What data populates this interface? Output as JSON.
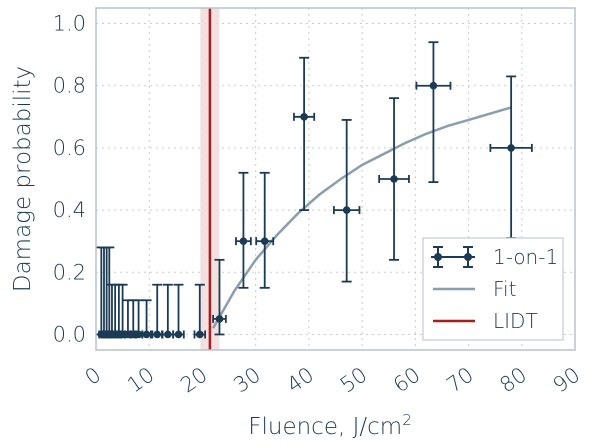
{
  "chart_data": {
    "type": "scatter",
    "title": "",
    "xlabel": "Fluence, J/cm",
    "xlabel_sup": "2",
    "ylabel": "Damage probability",
    "xlim": [
      0,
      90
    ],
    "ylim": [
      -0.05,
      1.05
    ],
    "x_ticks": [
      0,
      10,
      20,
      30,
      40,
      50,
      60,
      70,
      80,
      90
    ],
    "y_ticks": [
      0.0,
      0.2,
      0.4,
      0.6,
      0.8,
      1.0
    ],
    "y_tick_labels": [
      "0.0",
      "0.2",
      "0.4",
      "0.6",
      "0.8",
      "1.0"
    ],
    "grid": true,
    "legend_position": "bottom-right",
    "series": [
      {
        "name": "1-on-1",
        "color": "#1b3b55",
        "points": [
          {
            "x": 1.0,
            "y": 0.0,
            "xerr": 0.4,
            "yerr_low": 0.0,
            "yerr_high": 0.28
          },
          {
            "x": 1.5,
            "y": 0.0,
            "xerr": 0.4,
            "yerr_low": 0.0,
            "yerr_high": 0.28
          },
          {
            "x": 2.0,
            "y": 0.0,
            "xerr": 0.4,
            "yerr_low": 0.0,
            "yerr_high": 0.28
          },
          {
            "x": 2.5,
            "y": 0.0,
            "xerr": 0.4,
            "yerr_low": 0.0,
            "yerr_high": 0.28
          },
          {
            "x": 3.0,
            "y": 0.0,
            "xerr": 0.4,
            "yerr_low": 0.0,
            "yerr_high": 0.16
          },
          {
            "x": 3.6,
            "y": 0.0,
            "xerr": 0.5,
            "yerr_low": 0.0,
            "yerr_high": 0.16
          },
          {
            "x": 4.3,
            "y": 0.0,
            "xerr": 0.5,
            "yerr_low": 0.0,
            "yerr_high": 0.16
          },
          {
            "x": 5.0,
            "y": 0.0,
            "xerr": 0.5,
            "yerr_low": 0.0,
            "yerr_high": 0.16
          },
          {
            "x": 6.0,
            "y": 0.0,
            "xerr": 0.6,
            "yerr_low": 0.0,
            "yerr_high": 0.11
          },
          {
            "x": 7.0,
            "y": 0.0,
            "xerr": 0.6,
            "yerr_low": 0.0,
            "yerr_high": 0.11
          },
          {
            "x": 8.0,
            "y": 0.0,
            "xerr": 0.7,
            "yerr_low": 0.0,
            "yerr_high": 0.11
          },
          {
            "x": 9.5,
            "y": 0.0,
            "xerr": 0.8,
            "yerr_low": 0.0,
            "yerr_high": 0.11
          },
          {
            "x": 11.5,
            "y": 0.0,
            "xerr": 0.9,
            "yerr_low": 0.0,
            "yerr_high": 0.16
          },
          {
            "x": 13.5,
            "y": 0.0,
            "xerr": 1.0,
            "yerr_low": 0.0,
            "yerr_high": 0.16
          },
          {
            "x": 15.5,
            "y": 0.0,
            "xerr": 1.0,
            "yerr_low": 0.0,
            "yerr_high": 0.16
          },
          {
            "x": 19.5,
            "y": 0.0,
            "xerr": 1.0,
            "yerr_low": 0.0,
            "yerr_high": 0.16
          },
          {
            "x": 23.2,
            "y": 0.05,
            "xerr": 1.2,
            "yerr_low": 0.05,
            "yerr_high": 0.19
          },
          {
            "x": 27.7,
            "y": 0.3,
            "xerr": 1.4,
            "yerr_low": 0.15,
            "yerr_high": 0.22
          },
          {
            "x": 31.7,
            "y": 0.3,
            "xerr": 1.6,
            "yerr_low": 0.15,
            "yerr_high": 0.22
          },
          {
            "x": 39.1,
            "y": 0.7,
            "xerr": 1.9,
            "yerr_low": 0.3,
            "yerr_high": 0.19
          },
          {
            "x": 47.1,
            "y": 0.4,
            "xerr": 2.4,
            "yerr_low": 0.23,
            "yerr_high": 0.29
          },
          {
            "x": 56.0,
            "y": 0.5,
            "xerr": 2.8,
            "yerr_low": 0.26,
            "yerr_high": 0.26
          },
          {
            "x": 63.4,
            "y": 0.8,
            "xerr": 3.2,
            "yerr_low": 0.31,
            "yerr_high": 0.14
          },
          {
            "x": 78.0,
            "y": 0.6,
            "xerr": 3.9,
            "yerr_low": 0.29,
            "yerr_high": 0.23
          }
        ]
      },
      {
        "name": "Fit",
        "color": "#8a9eaf",
        "x": [
          22.0,
          26.0,
          30.0,
          34.0,
          38.0,
          42.0,
          46.0,
          50.0,
          54.0,
          58.0,
          62.0,
          66.0,
          70.0,
          74.0,
          78.0
        ],
        "y": [
          0.02,
          0.14,
          0.24,
          0.32,
          0.39,
          0.45,
          0.5,
          0.545,
          0.58,
          0.615,
          0.645,
          0.67,
          0.69,
          0.71,
          0.73
        ]
      },
      {
        "name": "LIDT",
        "color": "#a81e1e",
        "value": 21.4,
        "band": [
          19.6,
          23.2
        ],
        "band_color": "#f1dcdc"
      }
    ]
  }
}
